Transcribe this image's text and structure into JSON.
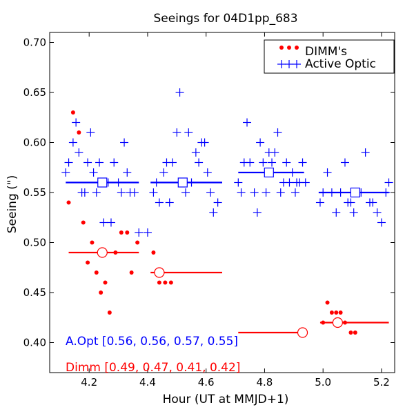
{
  "chart_data": {
    "type": "scatter",
    "title": "Seeings for 04D1pp_683",
    "xlabel": "Hour (UT at MMJD+1)",
    "ylabel": "Seeing (\")",
    "xlim": [
      4.065,
      5.245
    ],
    "ylim": [
      0.37,
      0.71
    ],
    "xticks": [
      4.2,
      4.4,
      4.6,
      4.8,
      5.0,
      5.2
    ],
    "xtick_labels": [
      "4.2",
      "4.4",
      "4.6",
      "4.8",
      "5.0",
      "5.2"
    ],
    "yticks": [
      0.4,
      0.45,
      0.5,
      0.55,
      0.6,
      0.65,
      0.7
    ],
    "ytick_labels": [
      "0.40",
      "0.45",
      "0.50",
      "0.55",
      "0.60",
      "0.65",
      "0.70"
    ],
    "grid": false,
    "legend": {
      "position": "top-right",
      "entries": [
        {
          "label": "DIMM's",
          "marker": "dots",
          "color": "#ff0000"
        },
        {
          "label": "Active Optic",
          "marker": "plus",
          "color": "#0000ff"
        }
      ]
    },
    "colors": {
      "dimm": "#ff0000",
      "aopt": "#0000ff",
      "axes": "#000000",
      "title": "#ff0000"
    },
    "series": [
      {
        "name": "DIMM's",
        "marker": "dot",
        "color": "#ff0000",
        "points": [
          [
            4.13,
            0.54
          ],
          [
            4.145,
            0.63
          ],
          [
            4.165,
            0.61
          ],
          [
            4.18,
            0.52
          ],
          [
            4.195,
            0.48
          ],
          [
            4.21,
            0.5
          ],
          [
            4.225,
            0.47
          ],
          [
            4.24,
            0.45
          ],
          [
            4.255,
            0.46
          ],
          [
            4.27,
            0.43
          ],
          [
            4.29,
            0.49
          ],
          [
            4.31,
            0.51
          ],
          [
            4.33,
            0.51
          ],
          [
            4.345,
            0.47
          ],
          [
            4.365,
            0.5
          ],
          [
            4.42,
            0.49
          ],
          [
            4.43,
            0.47
          ],
          [
            4.44,
            0.46
          ],
          [
            4.46,
            0.46
          ],
          [
            4.48,
            0.46
          ],
          [
            5.0,
            0.42
          ],
          [
            5.015,
            0.44
          ],
          [
            5.03,
            0.43
          ],
          [
            5.045,
            0.43
          ],
          [
            5.06,
            0.43
          ],
          [
            5.075,
            0.42
          ],
          [
            5.095,
            0.41
          ],
          [
            5.11,
            0.41
          ]
        ]
      },
      {
        "name": "Active Optic",
        "marker": "plus",
        "color": "#0000ff",
        "points": [
          [
            4.12,
            0.57
          ],
          [
            4.13,
            0.58
          ],
          [
            4.145,
            0.6
          ],
          [
            4.155,
            0.62
          ],
          [
            4.165,
            0.59
          ],
          [
            4.175,
            0.55
          ],
          [
            4.185,
            0.55
          ],
          [
            4.195,
            0.58
          ],
          [
            4.205,
            0.61
          ],
          [
            4.215,
            0.57
          ],
          [
            4.225,
            0.55
          ],
          [
            4.235,
            0.58
          ],
          [
            4.25,
            0.52
          ],
          [
            4.265,
            0.56
          ],
          [
            4.275,
            0.52
          ],
          [
            4.285,
            0.58
          ],
          [
            4.3,
            0.56
          ],
          [
            4.31,
            0.55
          ],
          [
            4.32,
            0.6
          ],
          [
            4.33,
            0.57
          ],
          [
            4.34,
            0.55
          ],
          [
            4.355,
            0.55
          ],
          [
            4.37,
            0.51
          ],
          [
            4.4,
            0.51
          ],
          [
            4.42,
            0.55
          ],
          [
            4.43,
            0.56
          ],
          [
            4.44,
            0.54
          ],
          [
            4.455,
            0.57
          ],
          [
            4.465,
            0.58
          ],
          [
            4.475,
            0.54
          ],
          [
            4.485,
            0.58
          ],
          [
            4.5,
            0.61
          ],
          [
            4.51,
            0.65
          ],
          [
            4.52,
            0.56
          ],
          [
            4.53,
            0.55
          ],
          [
            4.54,
            0.61
          ],
          [
            4.55,
            0.56
          ],
          [
            4.565,
            0.59
          ],
          [
            4.575,
            0.58
          ],
          [
            4.585,
            0.6
          ],
          [
            4.595,
            0.6
          ],
          [
            4.605,
            0.57
          ],
          [
            4.615,
            0.55
          ],
          [
            4.625,
            0.53
          ],
          [
            4.64,
            0.54
          ],
          [
            4.71,
            0.56
          ],
          [
            4.72,
            0.55
          ],
          [
            4.73,
            0.58
          ],
          [
            4.74,
            0.62
          ],
          [
            4.75,
            0.58
          ],
          [
            4.765,
            0.55
          ],
          [
            4.775,
            0.53
          ],
          [
            4.785,
            0.6
          ],
          [
            4.795,
            0.58
          ],
          [
            4.805,
            0.55
          ],
          [
            4.815,
            0.59
          ],
          [
            4.825,
            0.58
          ],
          [
            4.835,
            0.59
          ],
          [
            4.845,
            0.61
          ],
          [
            4.855,
            0.55
          ],
          [
            4.865,
            0.56
          ],
          [
            4.875,
            0.58
          ],
          [
            4.885,
            0.56
          ],
          [
            4.895,
            0.57
          ],
          [
            4.905,
            0.55
          ],
          [
            4.91,
            0.56
          ],
          [
            4.92,
            0.56
          ],
          [
            4.93,
            0.58
          ],
          [
            4.94,
            0.56
          ],
          [
            4.99,
            0.54
          ],
          [
            5.0,
            0.55
          ],
          [
            5.015,
            0.57
          ],
          [
            5.03,
            0.55
          ],
          [
            5.045,
            0.53
          ],
          [
            5.06,
            0.55
          ],
          [
            5.075,
            0.58
          ],
          [
            5.085,
            0.54
          ],
          [
            5.095,
            0.54
          ],
          [
            5.105,
            0.53
          ],
          [
            5.12,
            0.55
          ],
          [
            5.13,
            0.55
          ],
          [
            5.145,
            0.59
          ],
          [
            5.16,
            0.54
          ],
          [
            5.17,
            0.54
          ],
          [
            5.185,
            0.53
          ],
          [
            5.2,
            0.52
          ],
          [
            5.215,
            0.55
          ],
          [
            5.225,
            0.56
          ]
        ]
      }
    ],
    "block_medians": {
      "dimm": [
        {
          "x": 4.245,
          "y": 0.49,
          "x_start": 4.13,
          "x_end": 4.37
        },
        {
          "x": 4.44,
          "y": 0.47,
          "x_start": 4.41,
          "x_end": 4.655
        },
        {
          "x": 4.93,
          "y": 0.41,
          "x_start": 4.71,
          "x_end": 4.935
        },
        {
          "x": 5.05,
          "y": 0.42,
          "x_start": 4.99,
          "x_end": 5.225
        }
      ],
      "aopt": [
        {
          "x": 4.245,
          "y": 0.56,
          "x_start": 4.12,
          "x_end": 4.37
        },
        {
          "x": 4.52,
          "y": 0.56,
          "x_start": 4.41,
          "x_end": 4.655
        },
        {
          "x": 4.815,
          "y": 0.57,
          "x_start": 4.71,
          "x_end": 4.935
        },
        {
          "x": 5.11,
          "y": 0.55,
          "x_start": 4.985,
          "x_end": 5.225
        }
      ]
    },
    "annotations": [
      {
        "text": "A.Opt [0.56, 0.56, 0.57, 0.55]",
        "color": "#0000ff"
      },
      {
        "text": "Dimm [0.49, 0.47, 0.41, 0.42]",
        "color": "#ff0000"
      }
    ]
  }
}
